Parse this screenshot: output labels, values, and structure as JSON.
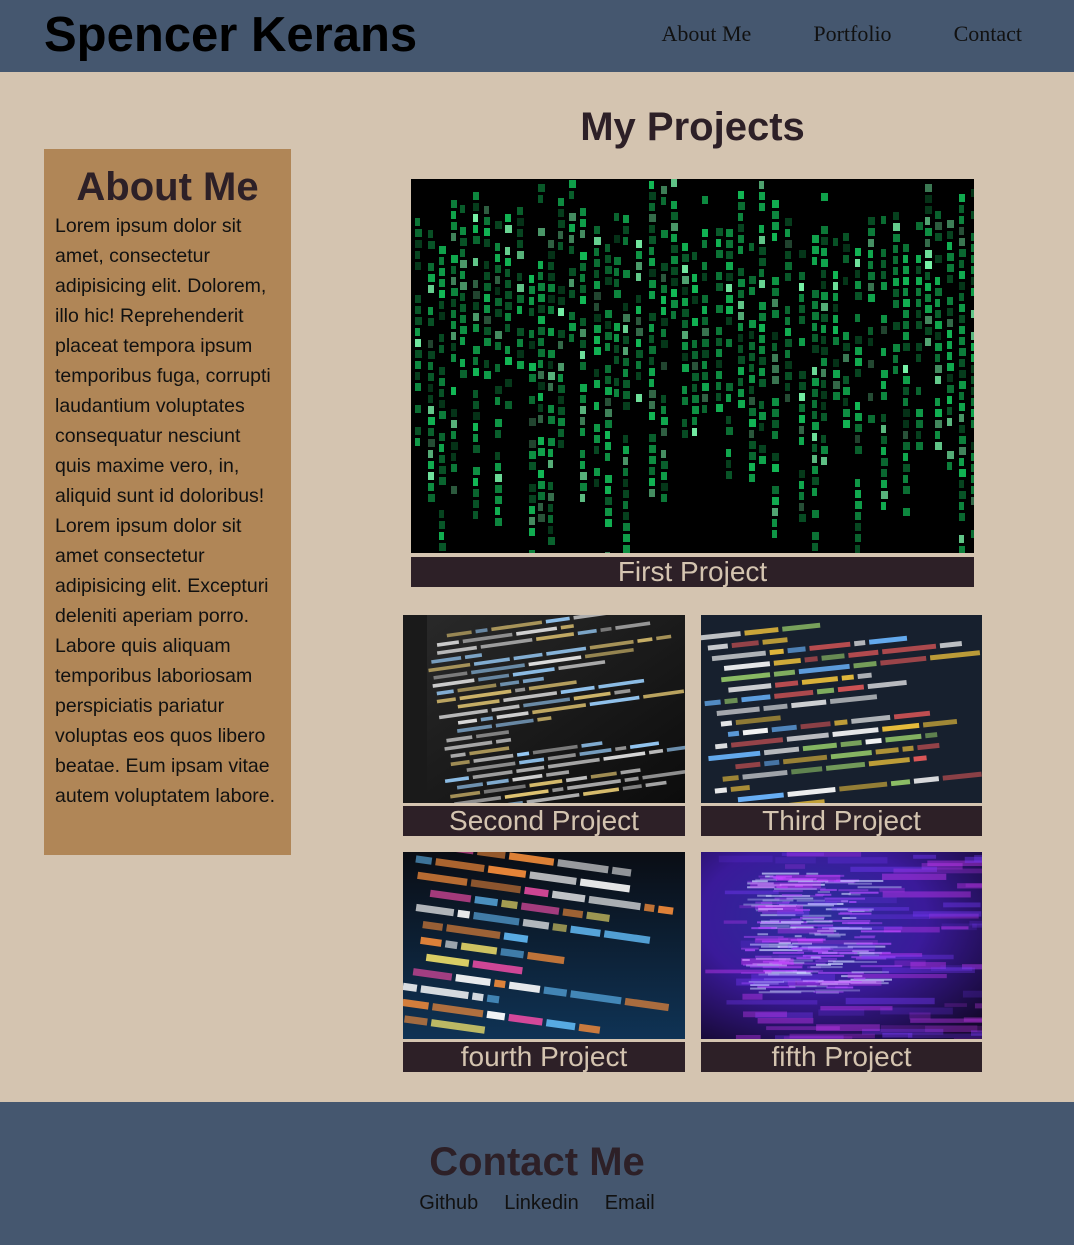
{
  "header": {
    "site_title": "Spencer Kerans",
    "nav": [
      "About Me",
      "Portfolio",
      "Contact"
    ]
  },
  "about": {
    "heading": "About Me",
    "body": "Lorem ipsum dolor sit amet, consectetur adipisicing elit. Dolorem, illo hic! Reprehenderit placeat tempora ipsum temporibus fuga, corrupti laudantium voluptates consequatur nesciunt quis maxime vero, in, aliquid sunt id doloribus! Lorem ipsum dolor sit amet consectetur adipisicing elit. Excepturi deleniti aperiam porro. Labore quis aliquam temporibus laboriosam perspiciatis pariatur voluptas eos quos libero beatae. Eum ipsam vitae autem voluptatem labore."
  },
  "projects": {
    "heading": "My Projects",
    "items": [
      {
        "label": "First Project",
        "image": "matrix-code-image"
      },
      {
        "label": "Second Project",
        "image": "html-code-image"
      },
      {
        "label": "Third Project",
        "image": "javascript-code-image"
      },
      {
        "label": "fourth Project",
        "image": "php-code-image"
      },
      {
        "label": "fifth Project",
        "image": "blurred-code-image"
      }
    ]
  },
  "footer": {
    "heading": "Contact Me",
    "links": [
      "Github",
      "Linkedin",
      "Email"
    ]
  },
  "colors": {
    "page_bg": "#d4c4b0",
    "header_bg": "#45576f",
    "about_bg": "#b08657",
    "label_bg": "#2d2027",
    "heading_text": "#2d2027"
  }
}
